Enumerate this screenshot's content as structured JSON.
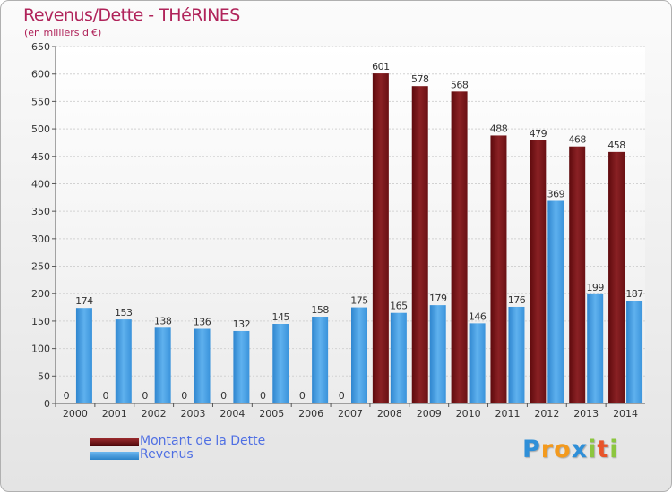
{
  "chart_data": {
    "type": "bar",
    "title": "Revenus/Dette - THéRINES",
    "subtitle": "(en milliers d'€)",
    "categories": [
      "2000",
      "2001",
      "2002",
      "2003",
      "2004",
      "2005",
      "2006",
      "2007",
      "2008",
      "2009",
      "2010",
      "2011",
      "2012",
      "2013",
      "2014"
    ],
    "series": [
      {
        "name": "Montant de la Dette",
        "color": "#7a1518",
        "values": [
          0,
          0,
          0,
          0,
          0,
          0,
          0,
          0,
          601,
          578,
          568,
          488,
          479,
          468,
          458
        ]
      },
      {
        "name": "Revenus",
        "color": "#3d9be0",
        "values": [
          174,
          153,
          138,
          136,
          132,
          145,
          158,
          175,
          165,
          179,
          146,
          176,
          369,
          199,
          187
        ]
      }
    ],
    "ylim": [
      0,
      650
    ],
    "yticks": [
      0,
      50,
      100,
      150,
      200,
      250,
      300,
      350,
      400,
      450,
      500,
      550,
      600,
      650
    ],
    "grid": true,
    "legend_position": "bottom-left"
  },
  "legend": {
    "items": [
      {
        "label": "Montant de la Dette",
        "color": "#7a1518"
      },
      {
        "label": "Revenus",
        "color": "#3d9be0"
      }
    ]
  },
  "logo": {
    "letters": [
      "P",
      "r",
      "o",
      "x",
      "i",
      "t",
      "i"
    ],
    "colors": [
      "#2f8fd8",
      "#f39a1e",
      "#f39a1e",
      "#2f8fd8",
      "#8cc63f",
      "#e8542a",
      "#8cc63f"
    ]
  }
}
